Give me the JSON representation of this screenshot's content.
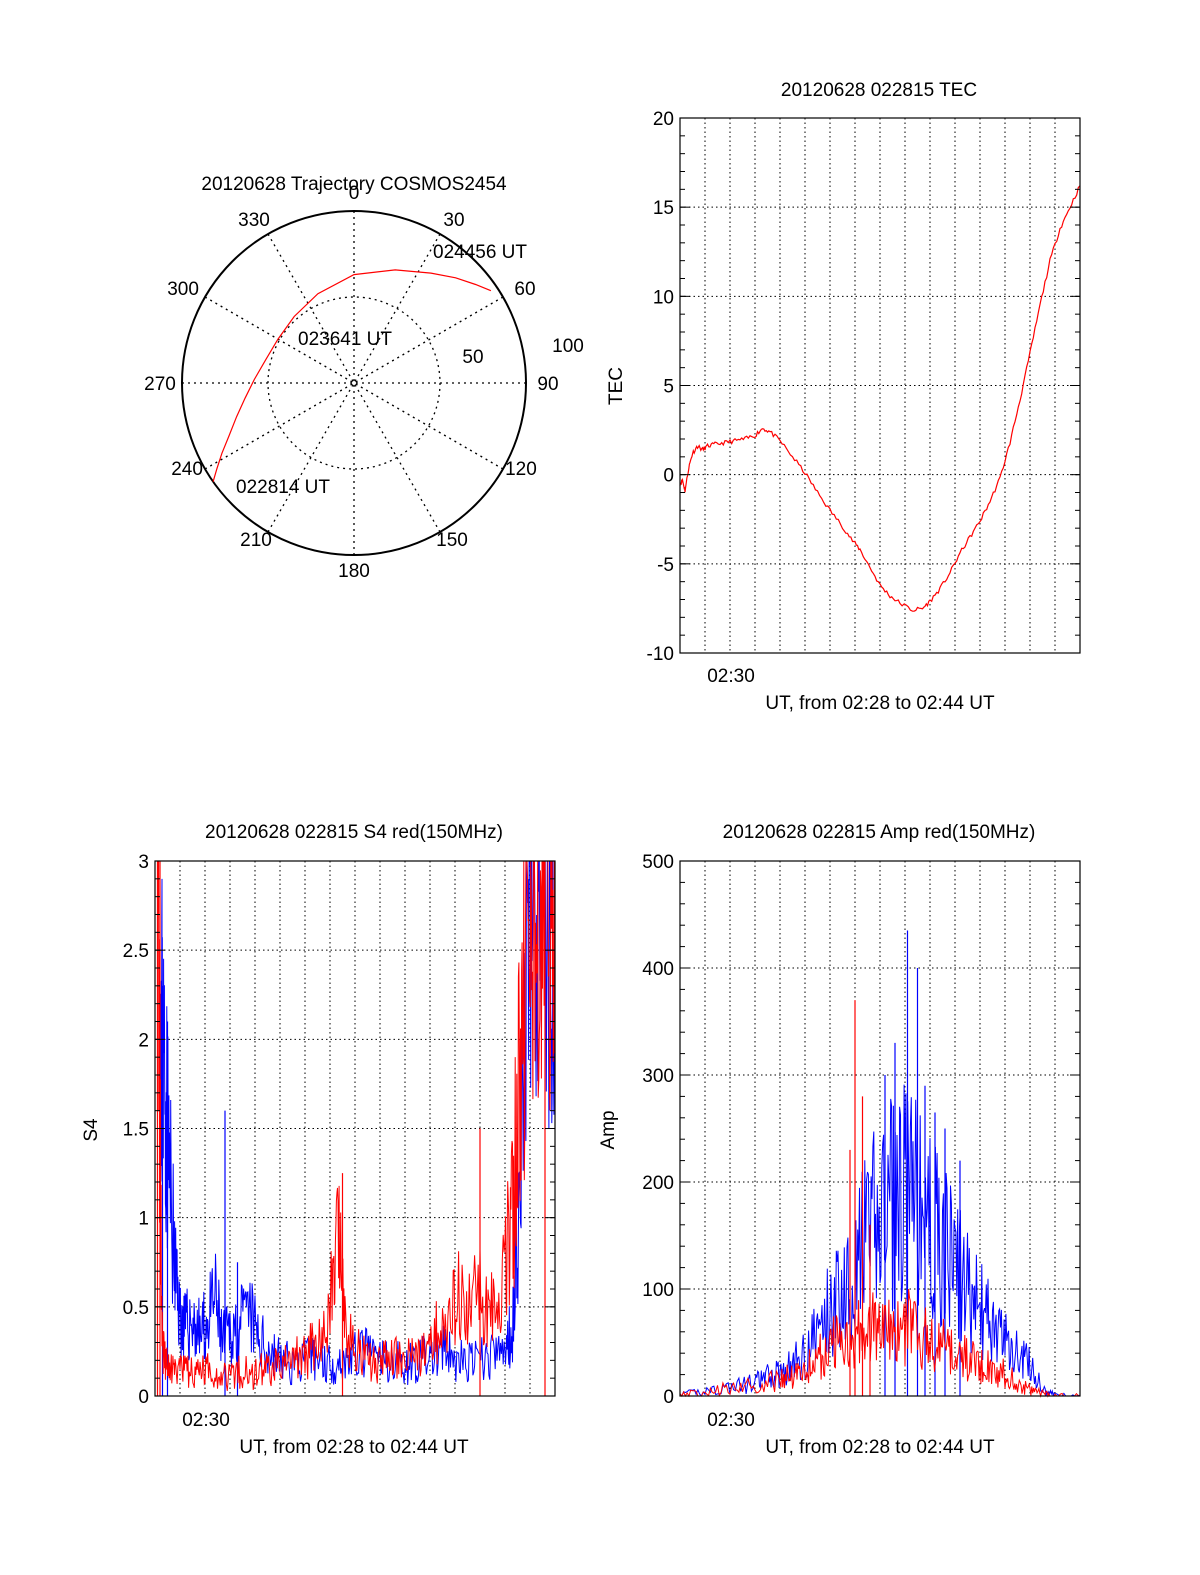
{
  "panels": {
    "trajectory": {
      "title": "20120628 Trajectory COSMOS2454",
      "azimuth_labels": [
        "0",
        "30",
        "60",
        "90",
        "120",
        "150",
        "180",
        "210",
        "240",
        "270",
        "300",
        "330"
      ],
      "elevation_labels": [
        "50",
        "100"
      ],
      "time_labels": {
        "start": "022814 UT",
        "mid": "023641 UT",
        "end": "024456 UT"
      }
    },
    "tec": {
      "title": "20120628 022815 TEC",
      "ylabel": "TEC",
      "xlabel": "UT, from 02:28 to 02:44 UT",
      "x_tick_label": "02:30"
    },
    "s4": {
      "title": "20120628 022815 S4 red(150MHz)",
      "ylabel": "S4",
      "xlabel": "UT, from 02:28 to 02:44 UT",
      "x_tick_label": "02:30"
    },
    "amp": {
      "title": "20120628 022815 Amp red(150MHz)",
      "ylabel": "Amp",
      "xlabel": "UT, from 02:28 to 02:44 UT",
      "x_tick_label": "02:30"
    }
  },
  "colors": {
    "red": "#ff0000",
    "blue": "#0000ff",
    "axis": "#000000"
  },
  "chart_data": [
    {
      "type": "scatter",
      "projection": "polar",
      "title": "20120628 Trajectory COSMOS2454",
      "note_axes": "azimuth in degrees clockwise from north (0); radial = zenith distance, 50 and 100 rings",
      "trajectory": {
        "azimuth": [
          235,
          238,
          242,
          247,
          254,
          262,
          272,
          285,
          300,
          318,
          338,
          0,
          20,
          35,
          44,
          51,
          56
        ],
        "radius": [
          100,
          94,
          87,
          79,
          71,
          64,
          58,
          53,
          51,
          52,
          56,
          63,
          70,
          78,
          85,
          91,
          96
        ],
        "start_label": "022814 UT",
        "mid_label": "023641 UT",
        "end_label": "024456 UT"
      },
      "rmax": 100
    },
    {
      "type": "line",
      "title": "20120628 022815 TEC",
      "xlabel": "UT, from 02:28 to 02:44 UT",
      "ylabel": "TEC",
      "x_unit": "minutes after 02:28 UT",
      "xlim": [
        0,
        16
      ],
      "ylim": [
        -10,
        20
      ],
      "yticks": [
        -10,
        -5,
        0,
        5,
        10,
        15,
        20
      ],
      "xtick_labels": [
        {
          "x": 2,
          "label": "02:30"
        }
      ],
      "grid": true,
      "series": [
        {
          "color": "#ff0000",
          "x": [
            0.0,
            0.1,
            0.2,
            0.35,
            0.5,
            0.7,
            0.9,
            1.1,
            1.4,
            1.8,
            2.2,
            2.6,
            3.0,
            3.3,
            3.6,
            4.0,
            4.5,
            5.0,
            5.5,
            6.0,
            6.5,
            6.9,
            7.2,
            7.6,
            8.0,
            8.4,
            8.8,
            9.3,
            9.7,
            10.0,
            10.4,
            10.8,
            11.2,
            11.6,
            12.0,
            12.4,
            12.8,
            13.2,
            13.6,
            14.0,
            14.4,
            14.8,
            15.2,
            15.6,
            16.0
          ],
          "y": [
            -0.5,
            -0.3,
            -0.9,
            0.4,
            1.2,
            1.6,
            1.4,
            1.6,
            1.7,
            1.8,
            1.9,
            2.0,
            2.2,
            2.6,
            2.4,
            1.9,
            1.0,
            0.1,
            -1.0,
            -2.0,
            -2.9,
            -3.7,
            -4.2,
            -5.2,
            -6.2,
            -6.8,
            -7.2,
            -7.6,
            -7.5,
            -7.1,
            -6.4,
            -5.5,
            -4.4,
            -3.5,
            -2.6,
            -1.5,
            -0.2,
            1.8,
            4.2,
            6.8,
            9.5,
            12.0,
            13.8,
            15.0,
            16.2
          ]
        }
      ]
    },
    {
      "type": "line",
      "title": "20120628 022815 S4 red(150MHz)",
      "xlabel": "UT, from 02:28 to 02:44 UT",
      "ylabel": "S4",
      "x_unit": "minutes after 02:28 UT",
      "xlim": [
        0,
        16
      ],
      "ylim": [
        0,
        3
      ],
      "yticks": [
        0,
        0.5,
        1,
        1.5,
        2,
        2.5,
        3
      ],
      "xtick_labels": [
        {
          "x": 2,
          "label": "02:30"
        }
      ],
      "grid": true,
      "series": [
        {
          "color": "#0000ff",
          "x": [
            0.2,
            0.3,
            0.45,
            0.6,
            0.8,
            1.0,
            1.2,
            1.5,
            1.8,
            2.1,
            2.4,
            2.7,
            3.0,
            3.4,
            3.8,
            4.2,
            4.6,
            5.0,
            5.5,
            6.0,
            6.5,
            7.0,
            7.5,
            8.0,
            8.5,
            9.0,
            9.5,
            10.0,
            10.5,
            11.0,
            11.5,
            12.0,
            12.5,
            13.0,
            13.5,
            14.0,
            14.3,
            14.6,
            14.9,
            15.2,
            15.5,
            15.8,
            16.0
          ],
          "y": [
            2.2,
            2.0,
            1.6,
            1.2,
            0.7,
            0.45,
            0.38,
            0.42,
            0.35,
            0.4,
            0.55,
            0.3,
            0.35,
            0.4,
            0.45,
            0.3,
            0.25,
            0.2,
            0.18,
            0.2,
            0.22,
            0.18,
            0.2,
            0.22,
            0.25,
            0.2,
            0.2,
            0.18,
            0.2,
            0.22,
            0.25,
            0.2,
            0.18,
            0.2,
            0.22,
            0.25,
            0.4,
            1.2,
            2.6,
            2.9,
            2.7,
            2.5,
            2.6
          ],
          "spikes": [
            [
              0.3,
              2.3
            ],
            [
              0.5,
              2.1
            ],
            [
              2.8,
              1.6
            ],
            [
              3.3,
              0.75
            ],
            [
              15.2,
              0.0
            ],
            [
              15.4,
              0.0
            ]
          ]
        },
        {
          "color": "#ff0000",
          "x": [
            0.1,
            0.2,
            0.3,
            0.5,
            0.8,
            1.2,
            1.6,
            2.0,
            2.5,
            3.0,
            3.5,
            4.0,
            4.5,
            5.0,
            5.5,
            6.0,
            6.5,
            7.0,
            7.3,
            7.6,
            8.0,
            8.5,
            9.0,
            9.5,
            10.0,
            10.5,
            11.0,
            11.5,
            12.0,
            12.5,
            13.0,
            13.5,
            14.0,
            14.3,
            14.6,
            14.9,
            15.2,
            15.5,
            15.8,
            16.0
          ],
          "y": [
            3.0,
            1.5,
            0.3,
            0.15,
            0.13,
            0.14,
            0.12,
            0.15,
            0.13,
            0.12,
            0.14,
            0.13,
            0.15,
            0.18,
            0.2,
            0.22,
            0.3,
            0.5,
            0.9,
            0.4,
            0.25,
            0.2,
            0.18,
            0.22,
            0.2,
            0.25,
            0.3,
            0.45,
            0.55,
            0.5,
            0.6,
            0.55,
            0.7,
            1.0,
            1.8,
            2.6,
            2.8,
            2.9,
            2.6,
            2.7
          ],
          "spikes": [
            [
              0.1,
              3.0
            ],
            [
              0.2,
              3.0
            ],
            [
              7.5,
              1.25
            ],
            [
              13.0,
              1.5
            ],
            [
              15.6,
              3.0
            ]
          ]
        }
      ]
    },
    {
      "type": "line",
      "title": "20120628 022815 Amp red(150MHz)",
      "xlabel": "UT, from 02:28 to 02:44 UT",
      "ylabel": "Amp",
      "x_unit": "minutes after 02:28 UT",
      "xlim": [
        0,
        16
      ],
      "ylim": [
        0,
        500
      ],
      "yticks": [
        0,
        100,
        200,
        300,
        400,
        500
      ],
      "xtick_labels": [
        {
          "x": 2,
          "label": "02:30"
        }
      ],
      "grid": true,
      "series": [
        {
          "color": "#0000ff",
          "x": [
            0.0,
            1.0,
            2.0,
            3.0,
            3.5,
            4.0,
            4.5,
            5.0,
            5.5,
            6.0,
            6.5,
            7.0,
            7.5,
            8.0,
            8.5,
            9.0,
            9.5,
            10.0,
            10.5,
            11.0,
            11.5,
            12.0,
            12.5,
            13.0,
            13.5,
            14.0,
            14.5,
            15.0,
            16.0
          ],
          "y": [
            0,
            5,
            8,
            12,
            18,
            22,
            28,
            40,
            60,
            80,
            100,
            120,
            150,
            170,
            180,
            190,
            175,
            160,
            140,
            120,
            100,
            80,
            65,
            50,
            40,
            30,
            5,
            0,
            0
          ],
          "spikes": [
            [
              9.1,
              435
            ],
            [
              9.5,
              400
            ],
            [
              8.6,
              330
            ],
            [
              8.2,
              300
            ],
            [
              9.8,
              290
            ],
            [
              10.2,
              265
            ],
            [
              10.6,
              250
            ],
            [
              11.2,
              220
            ]
          ]
        },
        {
          "color": "#ff0000",
          "x": [
            0.0,
            1.0,
            2.0,
            3.0,
            4.0,
            4.5,
            5.0,
            5.5,
            6.0,
            6.5,
            7.0,
            7.5,
            8.0,
            8.5,
            9.0,
            9.5,
            10.0,
            10.5,
            11.0,
            11.5,
            12.0,
            12.5,
            13.0,
            13.5,
            14.0,
            14.5,
            15.0,
            16.0
          ],
          "y": [
            0,
            4,
            8,
            10,
            15,
            20,
            25,
            35,
            45,
            55,
            60,
            65,
            60,
            55,
            65,
            58,
            50,
            45,
            40,
            35,
            30,
            25,
            20,
            12,
            5,
            2,
            0,
            0
          ],
          "spikes": [
            [
              7.0,
              370
            ],
            [
              7.3,
              280
            ],
            [
              7.6,
              160
            ],
            [
              6.8,
              230
            ]
          ]
        }
      ]
    }
  ]
}
